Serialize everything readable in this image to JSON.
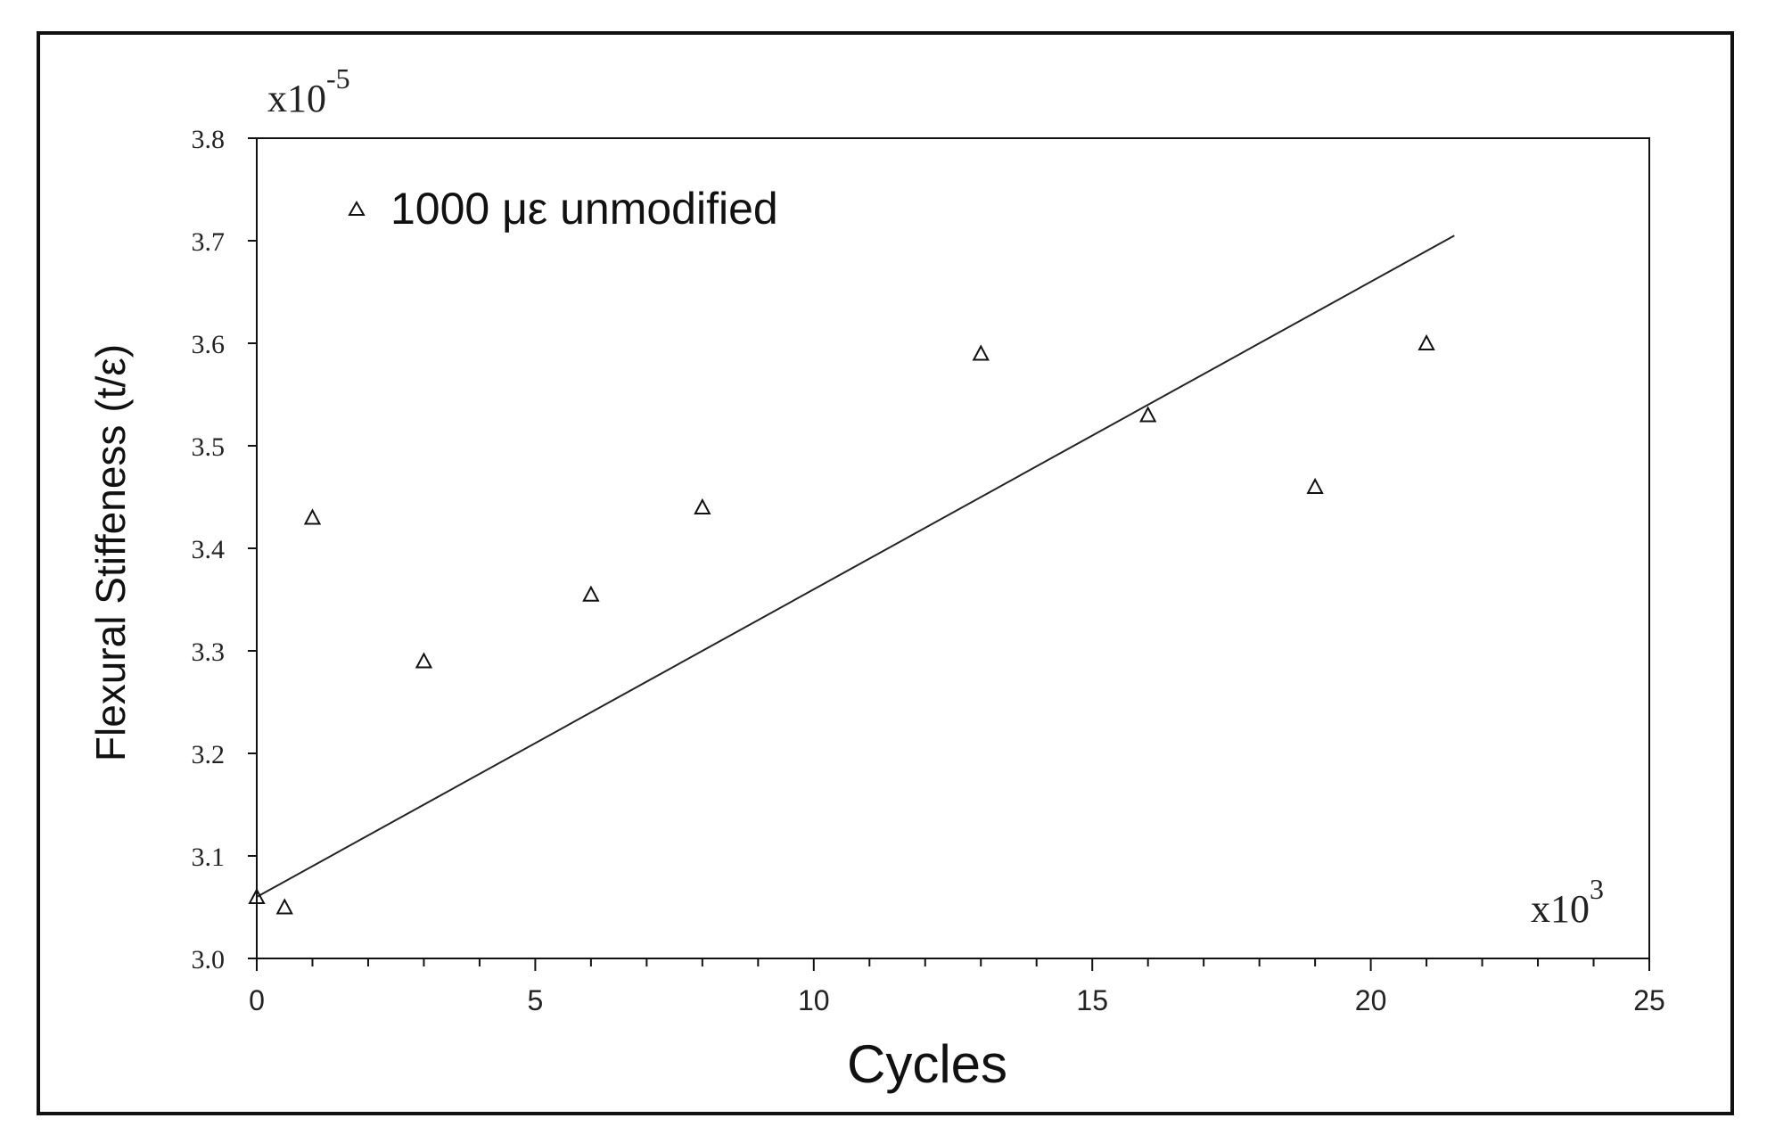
{
  "chart_data": {
    "type": "scatter",
    "title": "",
    "xlabel": "Cycles",
    "ylabel": "Flexural Stiffeness",
    "ylabel_unit": "(t/ε)",
    "x_multiplier_base": "x10",
    "x_multiplier_exp": "3",
    "y_multiplier_base": "x10",
    "y_multiplier_exp": "-5",
    "xlim": [
      0,
      25
    ],
    "ylim": [
      3.0,
      3.8
    ],
    "xticks": [
      0,
      5,
      10,
      15,
      20,
      25
    ],
    "xtick_labels": [
      "0",
      "5",
      "10",
      "15",
      "20",
      "25"
    ],
    "yticks": [
      3.0,
      3.1,
      3.2,
      3.3,
      3.4,
      3.5,
      3.6,
      3.7,
      3.8
    ],
    "ytick_labels": [
      "3.0",
      "3.1",
      "3.2",
      "3.3",
      "3.4",
      "3.5",
      "3.6",
      "3.7",
      "3.8"
    ],
    "grid": false,
    "legend_position": "top-left",
    "series": [
      {
        "name": "1000 με unmodified",
        "marker": "triangle",
        "x": [
          0,
          0.5,
          1.0,
          3.0,
          6.0,
          8.0,
          13.0,
          16.0,
          19.0,
          21.0
        ],
        "y": [
          3.06,
          3.05,
          3.43,
          3.29,
          3.355,
          3.44,
          3.59,
          3.53,
          3.46,
          3.6
        ]
      }
    ],
    "trendline": {
      "type": "linear",
      "x": [
        0,
        21.5
      ],
      "y": [
        3.06,
        3.705
      ]
    }
  }
}
